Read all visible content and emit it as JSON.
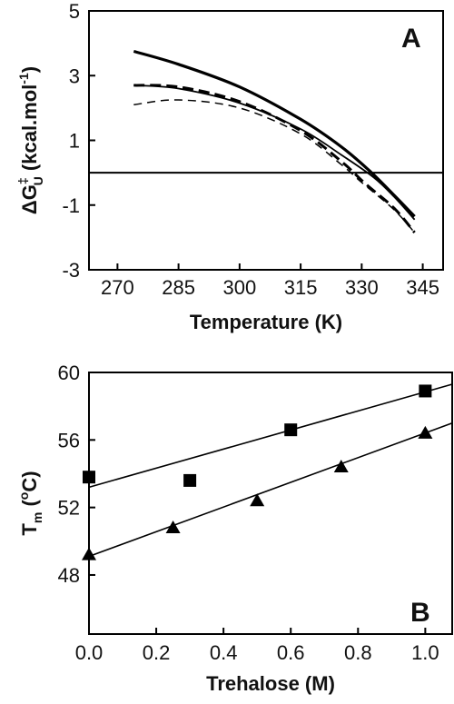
{
  "chart_data": [
    {
      "panel": "A",
      "type": "line",
      "xlabel": "Temperature (K)",
      "ylabel": {
        "main": "ΔG",
        "sup": "‡",
        "sub": "U",
        "unit": " (kcal.mol",
        "unit_sup": "-1",
        "close": ")"
      },
      "xlim": [
        263,
        350
      ],
      "ylim": [
        -3,
        5
      ],
      "xticks": [
        270,
        285,
        300,
        315,
        330,
        345
      ],
      "yticks": [
        -3,
        -1,
        1,
        3,
        5
      ],
      "reference_line_y": 0,
      "series": [
        {
          "style": "thick-solid",
          "x": [
            274,
            285,
            300,
            315,
            325,
            332,
            338,
            343
          ],
          "y": [
            3.75,
            3.35,
            2.65,
            1.65,
            0.8,
            0.05,
            -0.7,
            -1.35
          ]
        },
        {
          "style": "solid",
          "x": [
            274,
            285,
            300,
            315,
            325,
            333,
            338,
            343
          ],
          "y": [
            2.7,
            2.6,
            2.15,
            1.35,
            0.55,
            -0.15,
            -0.75,
            -1.45
          ]
        },
        {
          "style": "thick-dashed",
          "x": [
            274,
            285,
            300,
            315,
            325,
            331,
            338,
            343
          ],
          "y": [
            2.7,
            2.65,
            2.2,
            1.3,
            0.35,
            -0.35,
            -1.1,
            -1.85
          ]
        },
        {
          "style": "dashed",
          "x": [
            274,
            285,
            300,
            315,
            325,
            330,
            338,
            343
          ],
          "y": [
            2.1,
            2.25,
            2.0,
            1.2,
            0.25,
            -0.3,
            -1.15,
            -1.85
          ]
        }
      ]
    },
    {
      "panel": "B",
      "type": "scatter",
      "xlabel": "Trehalose (M)",
      "ylabel": {
        "main": "T",
        "sub": "m",
        "unit": " (",
        "unit_sup": "o",
        "close": "C)"
      },
      "xlim": [
        0,
        1.08
      ],
      "ylim": [
        44.5,
        60
      ],
      "xticks": [
        "0.0",
        "0.2",
        "0.4",
        "0.6",
        "0.8",
        "1.0"
      ],
      "yticks": [
        48,
        52,
        56,
        60
      ],
      "series": [
        {
          "marker": "square",
          "x": [
            0.0,
            0.3,
            0.6,
            1.0
          ],
          "y": [
            53.8,
            53.6,
            56.6,
            58.9
          ],
          "fit": [
            [
              0.0,
              53.2
            ],
            [
              1.08,
              59.3
            ]
          ]
        },
        {
          "marker": "triangle",
          "x": [
            0.0,
            0.25,
            0.5,
            0.75,
            1.0
          ],
          "y": [
            49.2,
            50.8,
            52.4,
            54.4,
            56.4
          ],
          "fit": [
            [
              0.0,
              49.1
            ],
            [
              1.08,
              57.0
            ]
          ]
        }
      ]
    }
  ]
}
